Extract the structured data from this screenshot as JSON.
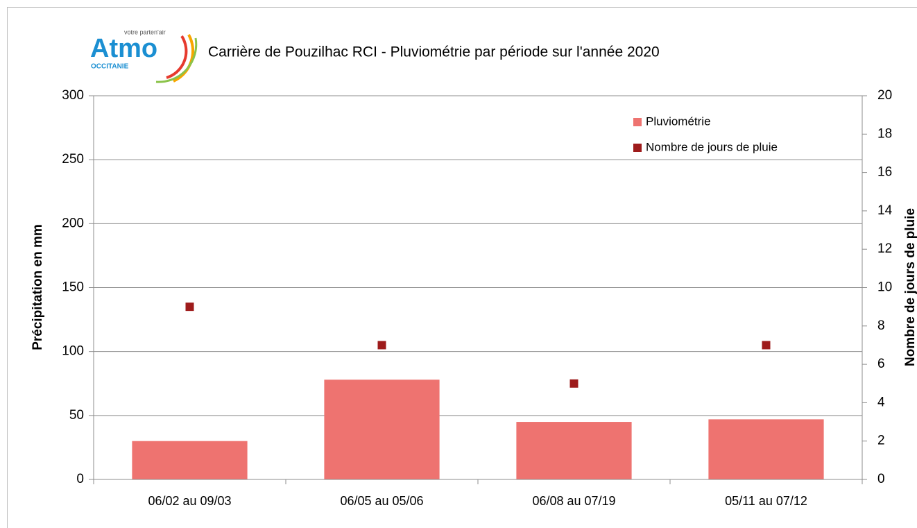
{
  "chart_data": {
    "type": "bar",
    "logo": {
      "name": "Atmo",
      "tagline": "votre parten'air",
      "region": "OCCITANIE"
    },
    "title": "Carrière de Pouzilhac RCI - Pluviométrie par période sur l'année 2020",
    "ylabel": "Précipitation en mm",
    "y2label": "Nombre de jours de pluie",
    "categories": [
      "06/02 au 09/03",
      "06/05 au 05/06",
      "06/08 au 07/19",
      "05/11 au 07/12"
    ],
    "series": [
      {
        "name": "Pluviométrie",
        "type": "bar",
        "color": "#ee7370",
        "values": [
          30,
          78,
          45,
          47
        ]
      },
      {
        "name": "Nombre de jours de pluie",
        "type": "scatter",
        "axis": "y2",
        "color": "#9e1b1b",
        "values": [
          9,
          7,
          5,
          7
        ]
      }
    ],
    "ylim": [
      0,
      300
    ],
    "yticks": [
      0,
      50,
      100,
      150,
      200,
      250,
      300
    ],
    "y2lim": [
      0,
      20
    ],
    "y2ticks": [
      0,
      2,
      4,
      6,
      8,
      10,
      12,
      14,
      16,
      18,
      20
    ],
    "grid": true,
    "legend": "upper right"
  }
}
